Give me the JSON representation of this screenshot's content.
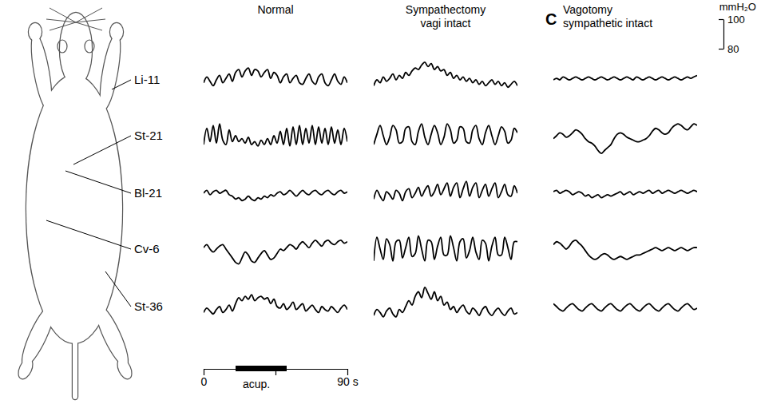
{
  "chart_data": {
    "type": "line",
    "color": "#000000",
    "rows": [
      "Li-11",
      "St-21",
      "Bl-21",
      "Cv-6",
      "St-36"
    ],
    "x": [
      0,
      2,
      4,
      6,
      8,
      10,
      12,
      14,
      16,
      18,
      20,
      22,
      24,
      26,
      28,
      30,
      32,
      34,
      36,
      38,
      40,
      42,
      44,
      46,
      48,
      50,
      52,
      54,
      56,
      58,
      60,
      62,
      64,
      66,
      68,
      70,
      72,
      74,
      76,
      78,
      80,
      82,
      84,
      86,
      88,
      90
    ],
    "xlim": [
      0,
      90
    ],
    "xticks": [
      0,
      {
        "value": 45,
        "label": null
      },
      {
        "value": 90,
        "label": "90 s"
      }
    ],
    "ylim": [
      70,
      110
    ],
    "tick_labels": "x",
    "annotations": [
      {
        "text": "acup.",
        "x": [
          20,
          52
        ]
      }
    ],
    "scale_bar": {
      "label": "mmH₂O",
      "ylim": [
        80,
        100
      ],
      "yticks": [
        80,
        100
      ]
    },
    "panels": [
      {
        "title": "Normal",
        "series": [
          {
            "values": [
              88,
              92,
              89,
              86,
              90,
              93,
              88,
              91,
              94,
              89,
              95,
              97,
              92,
              96,
              98,
              93,
              97,
              96,
              92,
              95,
              97,
              91,
              95,
              93,
              88,
              92,
              94,
              88,
              91,
              93,
              88,
              87,
              91,
              94,
              89,
              87,
              92,
              94,
              88,
              86,
              90,
              94,
              89,
              87,
              92,
              88
            ]
          },
          {
            "values": [
              84,
              95,
              86,
              97,
              85,
              98,
              87,
              84,
              94,
              86,
              90,
              86,
              88,
              85,
              89,
              84,
              86,
              83,
              87,
              84,
              88,
              84,
              90,
              85,
              93,
              84,
              95,
              83,
              96,
              84,
              97,
              84,
              95,
              85,
              97,
              84,
              96,
              85,
              95,
              84,
              96,
              85,
              94,
              84,
              95,
              86
            ]
          },
          {
            "values": [
              90,
              92,
              89,
              91,
              92,
              90,
              91,
              92,
              89,
              88,
              86,
              87,
              85,
              86,
              88,
              86,
              85,
              87,
              86,
              88,
              87,
              89,
              88,
              90,
              91,
              89,
              90,
              92,
              90,
              88,
              90,
              92,
              90,
              89,
              91,
              92,
              90,
              89,
              91,
              92,
              90,
              89,
              91,
              92,
              90,
              91
            ]
          },
          {
            "values": [
              91,
              93,
              90,
              88,
              90,
              92,
              93,
              90,
              87,
              84,
              81,
              80,
              84,
              88,
              86,
              82,
              81,
              84,
              87,
              89,
              86,
              83,
              84,
              87,
              90,
              89,
              91,
              93,
              92,
              90,
              93,
              95,
              93,
              91,
              94,
              96,
              94,
              92,
              95,
              96,
              94,
              93,
              95,
              96,
              94,
              95
            ]
          },
          {
            "values": [
              86,
              89,
              87,
              85,
              88,
              90,
              86,
              88,
              91,
              87,
              92,
              96,
              94,
              97,
              95,
              98,
              94,
              96,
              97,
              95,
              96,
              92,
              95,
              90,
              89,
              92,
              88,
              90,
              93,
              88,
              90,
              92,
              87,
              89,
              91,
              88,
              86,
              90,
              88,
              87,
              90,
              88,
              86,
              89,
              91,
              88
            ]
          }
        ]
      },
      {
        "title": "Sympathectomy",
        "subtitle": "vagi intact",
        "series": [
          {
            "values": [
              86,
              90,
              88,
              92,
              89,
              91,
              94,
              90,
              93,
              91,
              95,
              93,
              96,
              98,
              97,
              100,
              102,
              99,
              101,
              97,
              99,
              96,
              97,
              93,
              95,
              91,
              93,
              90,
              92,
              89,
              91,
              88,
              90,
              87,
              89,
              86,
              88,
              90,
              87,
              89,
              86,
              88,
              85,
              87,
              89,
              86
            ]
          },
          {
            "values": [
              84,
              91,
              97,
              90,
              84,
              89,
              97,
              94,
              85,
              86,
              95,
              96,
              86,
              84,
              93,
              98,
              89,
              84,
              91,
              97,
              92,
              84,
              89,
              98,
              94,
              85,
              87,
              96,
              95,
              86,
              85,
              94,
              97,
              88,
              84,
              92,
              97,
              90,
              84,
              90,
              96,
              93,
              85,
              87,
              95,
              92
            ]
          },
          {
            "values": [
              86,
              92,
              88,
              85,
              91,
              89,
              86,
              92,
              90,
              85,
              91,
              93,
              87,
              90,
              94,
              88,
              92,
              95,
              88,
              91,
              96,
              89,
              93,
              97,
              88,
              94,
              97,
              87,
              93,
              98,
              88,
              94,
              97,
              87,
              92,
              96,
              88,
              93,
              97,
              87,
              91,
              96,
              89,
              88,
              95,
              90
            ]
          },
          {
            "values": [
              82,
              98,
              90,
              83,
              97,
              93,
              82,
              95,
              96,
              84,
              91,
              98,
              85,
              87,
              99,
              90,
              82,
              96,
              95,
              83,
              92,
              98,
              86,
              86,
              99,
              91,
              82,
              95,
              97,
              84,
              89,
              98,
              88,
              83,
              96,
              94,
              82,
              92,
              98,
              86,
              86,
              98,
              91,
              83,
              95,
              95
            ]
          },
          {
            "values": [
              84,
              88,
              86,
              83,
              87,
              89,
              85,
              83,
              88,
              86,
              90,
              94,
              91,
              97,
              100,
              96,
              103,
              99,
              95,
              100,
              94,
              97,
              91,
              93,
              88,
              90,
              86,
              89,
              91,
              87,
              85,
              89,
              87,
              84,
              88,
              90,
              86,
              84,
              87,
              89,
              86,
              84,
              87,
              89,
              85,
              86
            ]
          }
        ]
      },
      {
        "panel_label": "C",
        "title": "Vagotomy",
        "subtitle": "sympathetic intact",
        "series": [
          {
            "values": [
              90,
              91,
              90,
              92,
              91,
              90,
              91,
              92,
              91,
              90,
              91,
              92,
              91,
              90,
              91,
              92,
              91,
              90,
              91,
              92,
              91,
              90,
              91,
              92,
              91,
              90,
              92,
              91,
              90,
              91,
              92,
              91,
              90,
              91,
              92,
              91,
              90,
              91,
              92,
              91,
              90,
              91,
              92,
              91,
              92,
              93
            ]
          },
          {
            "values": [
              88,
              90,
              92,
              91,
              89,
              90,
              92,
              94,
              93,
              91,
              88,
              86,
              85,
              83,
              80,
              78,
              80,
              82,
              84,
              88,
              91,
              92,
              91,
              89,
              88,
              87,
              86,
              86,
              87,
              88,
              90,
              93,
              95,
              94,
              92,
              91,
              92,
              95,
              97,
              98,
              97,
              95,
              94,
              96,
              98,
              97
            ]
          },
          {
            "values": [
              91,
              92,
              90,
              91,
              92,
              91,
              89,
              90,
              91,
              90,
              88,
              89,
              87,
              88,
              89,
              87,
              88,
              89,
              88,
              89,
              90,
              91,
              89,
              90,
              91,
              89,
              90,
              91,
              90,
              91,
              92,
              90,
              91,
              92,
              90,
              91,
              92,
              91,
              90,
              91,
              92,
              91,
              90,
              91,
              92,
              91
            ]
          },
          {
            "values": [
              93,
              95,
              94,
              92,
              90,
              92,
              95,
              96,
              94,
              92,
              89,
              86,
              84,
              83,
              84,
              86,
              87,
              86,
              84,
              83,
              84,
              85,
              84,
              83,
              84,
              85,
              86,
              86,
              87,
              88,
              89,
              90,
              91,
              90,
              89,
              90,
              91,
              90,
              89,
              90,
              91,
              90,
              89,
              90,
              91,
              91
            ]
          },
          {
            "values": [
              92,
              90,
              88,
              87,
              89,
              91,
              92,
              90,
              88,
              87,
              89,
              91,
              92,
              90,
              88,
              87,
              89,
              91,
              92,
              90,
              88,
              87,
              89,
              91,
              92,
              90,
              88,
              87,
              89,
              91,
              92,
              90,
              88,
              87,
              89,
              91,
              92,
              90,
              88,
              87,
              89,
              91,
              92,
              90,
              88,
              89
            ]
          }
        ]
      }
    ]
  }
}
